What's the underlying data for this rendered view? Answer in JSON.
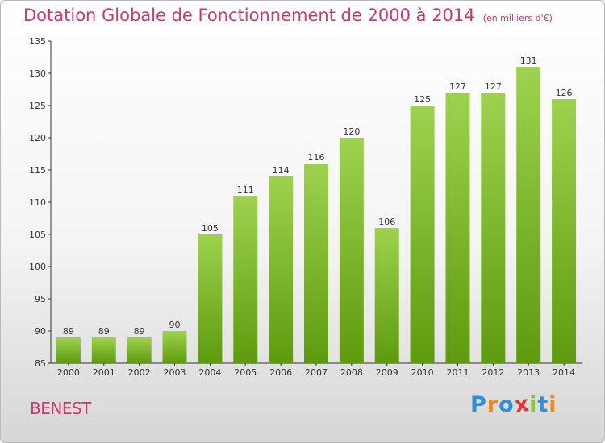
{
  "chart_data": {
    "type": "bar",
    "title": "Dotation Globale de Fonctionnement de 2000 à 2014",
    "subtitle": "(en milliers d'€)",
    "categories": [
      "2000",
      "2001",
      "2002",
      "2003",
      "2004",
      "2005",
      "2006",
      "2007",
      "2008",
      "2009",
      "2010",
      "2011",
      "2012",
      "2013",
      "2014"
    ],
    "values": [
      89,
      89,
      89,
      90,
      105,
      111,
      114,
      116,
      120,
      106,
      125,
      127,
      127,
      131,
      126
    ],
    "ylim": [
      85,
      135
    ],
    "yticks": [
      85,
      90,
      95,
      100,
      105,
      110,
      115,
      120,
      125,
      130,
      135
    ],
    "grid": false,
    "colors": {
      "bar_top": "#9ed24e",
      "bar_bottom": "#5e9a0e",
      "title": "#d6336c"
    }
  },
  "place_name": "BENEST",
  "logo": {
    "text": "Proxiti",
    "letters": [
      "P",
      "r",
      "o",
      "x",
      "i",
      "t",
      "i"
    ],
    "colors": [
      "#2f8fd8",
      "#f08a1c",
      "#2f8fd8",
      "#e8322c",
      "#8cc63e",
      "#2f8fd8",
      "#f08a1c"
    ]
  }
}
